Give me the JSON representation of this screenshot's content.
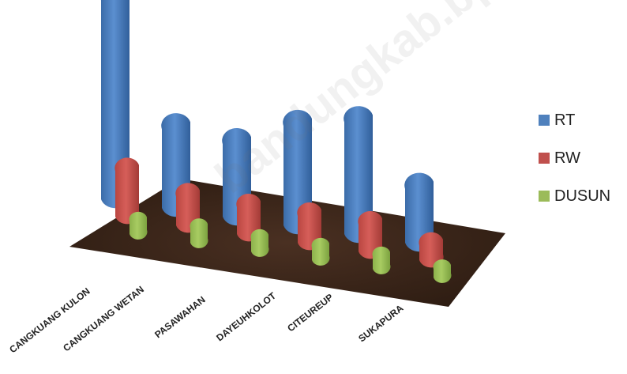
{
  "chart_data": {
    "type": "bar",
    "title": "",
    "xlabel": "",
    "ylabel": "",
    "categories": [
      "CANGKUANG KULON",
      "CANGKUANG WETAN",
      "PASAWAHAN",
      "DAYEUHKOLOT",
      "CITEUREUP",
      "SUKAPURA"
    ],
    "series": [
      {
        "name": "RT",
        "color": "#4f81bd",
        "values": [
          96,
          38,
          35,
          48,
          54,
          26
        ]
      },
      {
        "name": "RW",
        "color": "#c0504d",
        "values": [
          22,
          14,
          13,
          13,
          13,
          7
        ]
      },
      {
        "name": "DUSUN",
        "color": "#9bbb59",
        "values": [
          6,
          7,
          6,
          6,
          6,
          4
        ]
      }
    ],
    "legend_position": "right",
    "grid": false,
    "floor_color": "#3a2418"
  },
  "watermark": "bandungkab.bps.go.id"
}
